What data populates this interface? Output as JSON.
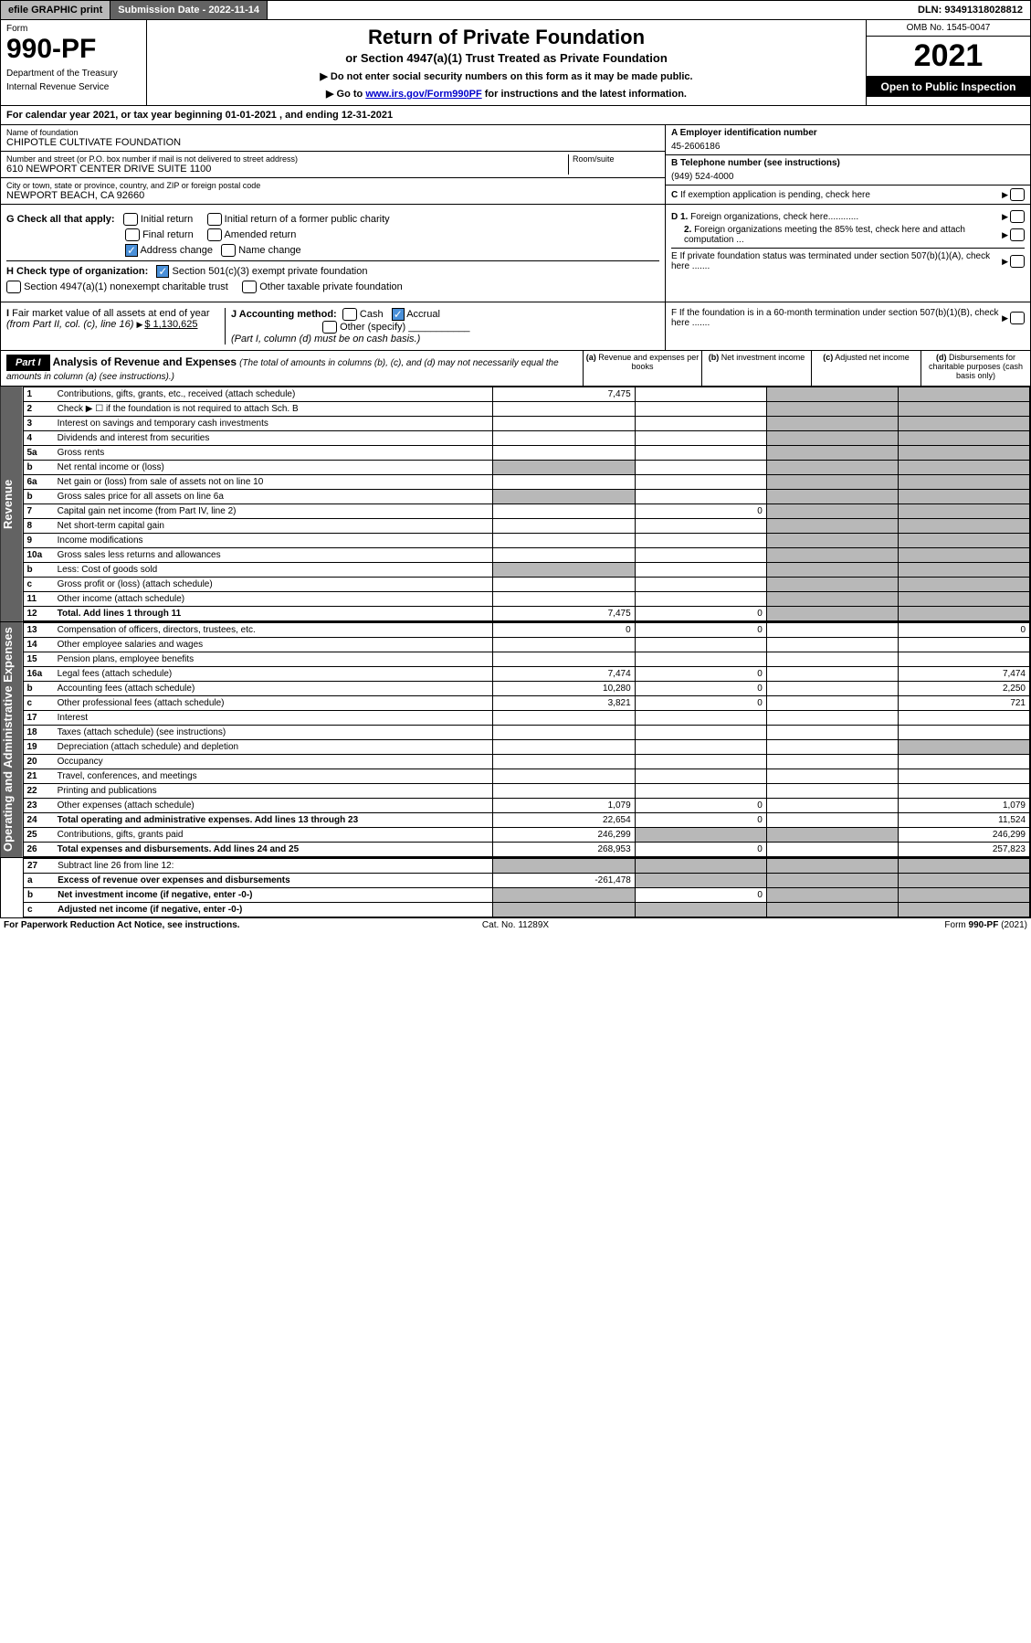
{
  "topbar": {
    "efile": "efile GRAPHIC print",
    "subdate_label": "Submission Date - 2022-11-14",
    "dln": "DLN: 93491318028812"
  },
  "header": {
    "form_label": "Form",
    "form_no": "990-PF",
    "dept": "Department of the Treasury",
    "irs": "Internal Revenue Service",
    "title": "Return of Private Foundation",
    "subtitle": "or Section 4947(a)(1) Trust Treated as Private Foundation",
    "note1": "▶ Do not enter social security numbers on this form as it may be made public.",
    "note2_pre": "▶ Go to ",
    "note2_link": "www.irs.gov/Form990PF",
    "note2_post": " for instructions and the latest information.",
    "omb": "OMB No. 1545-0047",
    "year": "2021",
    "open": "Open to Public Inspection"
  },
  "calyear": {
    "pre": "For calendar year 2021, or tax year beginning ",
    "begin": "01-01-2021",
    "mid": " , and ending ",
    "end": "12-31-2021"
  },
  "id": {
    "name_label": "Name of foundation",
    "name": "CHIPOTLE CULTIVATE FOUNDATION",
    "addr_label": "Number and street (or P.O. box number if mail is not delivered to street address)",
    "addr": "610 NEWPORT CENTER DRIVE SUITE 1100",
    "room_label": "Room/suite",
    "city_label": "City or town, state or province, country, and ZIP or foreign postal code",
    "city": "NEWPORT BEACH, CA  92660",
    "a_label": "A Employer identification number",
    "a_val": "45-2606186",
    "b_label": "B Telephone number (see instructions)",
    "b_val": "(949) 524-4000",
    "c_label": "C If exemption application is pending, check here"
  },
  "g": {
    "label": "G Check all that apply:",
    "opts": [
      "Initial return",
      "Initial return of a former public charity",
      "Final return",
      "Amended return",
      "Address change",
      "Name change"
    ],
    "checked_idx": 4
  },
  "h": {
    "label": "H Check type of organization:",
    "opt1": "Section 501(c)(3) exempt private foundation",
    "opt2": "Section 4947(a)(1) nonexempt charitable trust",
    "opt3": "Other taxable private foundation"
  },
  "i": {
    "label": "I Fair market value of all assets at end of year (from Part II, col. (c), line 16) ",
    "val": "$  1,130,625"
  },
  "j": {
    "label": "J Accounting method:",
    "cash": "Cash",
    "accrual": "Accrual",
    "other": "Other (specify)",
    "note": "(Part I, column (d) must be on cash basis.)"
  },
  "d": {
    "d1": "D 1. Foreign organizations, check here............",
    "d2": "2. Foreign organizations meeting the 85% test, check here and attach computation ..."
  },
  "e": {
    "txt": "E  If private foundation status was terminated under section 507(b)(1)(A), check here ......."
  },
  "f": {
    "txt": "F  If the foundation is in a 60-month termination under section 507(b)(1)(B), check here ......."
  },
  "part1": {
    "label": "Part I",
    "title": "Analysis of Revenue and Expenses",
    "sub": "(The total of amounts in columns (b), (c), and (d) may not necessarily equal the amounts in column (a) (see instructions).)",
    "col_a": "(a)  Revenue and expenses per books",
    "col_b": "(b)  Net investment income",
    "col_c": "(c)  Adjusted net income",
    "col_d": "(d)  Disbursements for charitable purposes (cash basis only)"
  },
  "side_rev": "Revenue",
  "side_exp": "Operating and Administrative Expenses",
  "rows_rev": [
    {
      "ln": "1",
      "lbl": "Contributions, gifts, grants, etc., received (attach schedule)",
      "a": "7,475"
    },
    {
      "ln": "2",
      "lbl": "Check ▶ ☐ if the foundation is not required to attach Sch. B"
    },
    {
      "ln": "3",
      "lbl": "Interest on savings and temporary cash investments"
    },
    {
      "ln": "4",
      "lbl": "Dividends and interest from securities"
    },
    {
      "ln": "5a",
      "lbl": "Gross rents"
    },
    {
      "ln": "b",
      "lbl": "Net rental income or (loss)"
    },
    {
      "ln": "6a",
      "lbl": "Net gain or (loss) from sale of assets not on line 10"
    },
    {
      "ln": "b",
      "lbl": "Gross sales price for all assets on line 6a"
    },
    {
      "ln": "7",
      "lbl": "Capital gain net income (from Part IV, line 2)",
      "b": "0"
    },
    {
      "ln": "8",
      "lbl": "Net short-term capital gain"
    },
    {
      "ln": "9",
      "lbl": "Income modifications"
    },
    {
      "ln": "10a",
      "lbl": "Gross sales less returns and allowances"
    },
    {
      "ln": "b",
      "lbl": "Less: Cost of goods sold"
    },
    {
      "ln": "c",
      "lbl": "Gross profit or (loss) (attach schedule)"
    },
    {
      "ln": "11",
      "lbl": "Other income (attach schedule)"
    },
    {
      "ln": "12",
      "lbl": "Total. Add lines 1 through 11",
      "a": "7,475",
      "b": "0",
      "bold": true
    }
  ],
  "rows_exp": [
    {
      "ln": "13",
      "lbl": "Compensation of officers, directors, trustees, etc.",
      "a": "0",
      "b": "0",
      "d": "0"
    },
    {
      "ln": "14",
      "lbl": "Other employee salaries and wages"
    },
    {
      "ln": "15",
      "lbl": "Pension plans, employee benefits"
    },
    {
      "ln": "16a",
      "lbl": "Legal fees (attach schedule)",
      "a": "7,474",
      "b": "0",
      "d": "7,474"
    },
    {
      "ln": "b",
      "lbl": "Accounting fees (attach schedule)",
      "a": "10,280",
      "b": "0",
      "d": "2,250"
    },
    {
      "ln": "c",
      "lbl": "Other professional fees (attach schedule)",
      "a": "3,821",
      "b": "0",
      "d": "721"
    },
    {
      "ln": "17",
      "lbl": "Interest"
    },
    {
      "ln": "18",
      "lbl": "Taxes (attach schedule) (see instructions)"
    },
    {
      "ln": "19",
      "lbl": "Depreciation (attach schedule) and depletion"
    },
    {
      "ln": "20",
      "lbl": "Occupancy"
    },
    {
      "ln": "21",
      "lbl": "Travel, conferences, and meetings"
    },
    {
      "ln": "22",
      "lbl": "Printing and publications"
    },
    {
      "ln": "23",
      "lbl": "Other expenses (attach schedule)",
      "a": "1,079",
      "b": "0",
      "d": "1,079"
    },
    {
      "ln": "24",
      "lbl": "Total operating and administrative expenses. Add lines 13 through 23",
      "a": "22,654",
      "b": "0",
      "d": "11,524",
      "bold": true
    },
    {
      "ln": "25",
      "lbl": "Contributions, gifts, grants paid",
      "a": "246,299",
      "d": "246,299"
    },
    {
      "ln": "26",
      "lbl": "Total expenses and disbursements. Add lines 24 and 25",
      "a": "268,953",
      "b": "0",
      "d": "257,823",
      "bold": true
    }
  ],
  "rows_net": [
    {
      "ln": "27",
      "lbl": "Subtract line 26 from line 12:"
    },
    {
      "ln": "a",
      "lbl": "Excess of revenue over expenses and disbursements",
      "a": "-261,478",
      "bold": true
    },
    {
      "ln": "b",
      "lbl": "Net investment income (if negative, enter -0-)",
      "b": "0",
      "bold": true
    },
    {
      "ln": "c",
      "lbl": "Adjusted net income (if negative, enter -0-)",
      "bold": true
    }
  ],
  "grey_a": [
    "b_5",
    "6a",
    "b_6",
    "10a",
    "b_10"
  ],
  "footer": {
    "f1": "For Paperwork Reduction Act Notice, see instructions.",
    "f2": "Cat. No. 11289X",
    "f3": "Form 990-PF (2021)"
  },
  "colors": {
    "header_grey": "#b8b8b8",
    "header_dark": "#636363",
    "link": "#0000cc",
    "check_blue": "#4a90d9"
  }
}
